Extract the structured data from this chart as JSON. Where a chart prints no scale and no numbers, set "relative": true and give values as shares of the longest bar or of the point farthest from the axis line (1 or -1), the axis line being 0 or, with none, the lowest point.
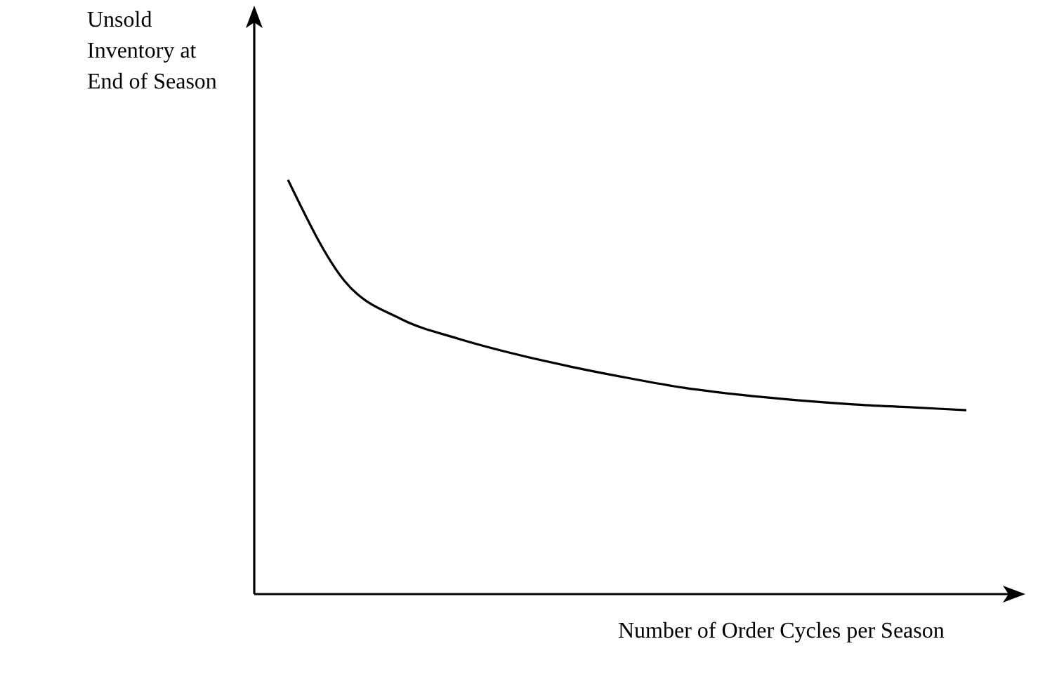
{
  "chart_data": {
    "type": "line",
    "relative": true,
    "xlabel": "Number of Order Cycles per Season",
    "ylabel": "Unsold\nInventory at\nEnd of Season",
    "categories": [
      null,
      null,
      null,
      null,
      null,
      null,
      null,
      null,
      null,
      null,
      null,
      null,
      null
    ],
    "series": [
      {
        "color": "#000000",
        "values": [
          1,
          0.756,
          0.664,
          0.617,
          0.58,
          0.549,
          0.522,
          0.498,
          0.481,
          0.468,
          0.458,
          0.451,
          0.444
        ]
      }
    ],
    "marker": "none",
    "line_style": "solid"
  }
}
